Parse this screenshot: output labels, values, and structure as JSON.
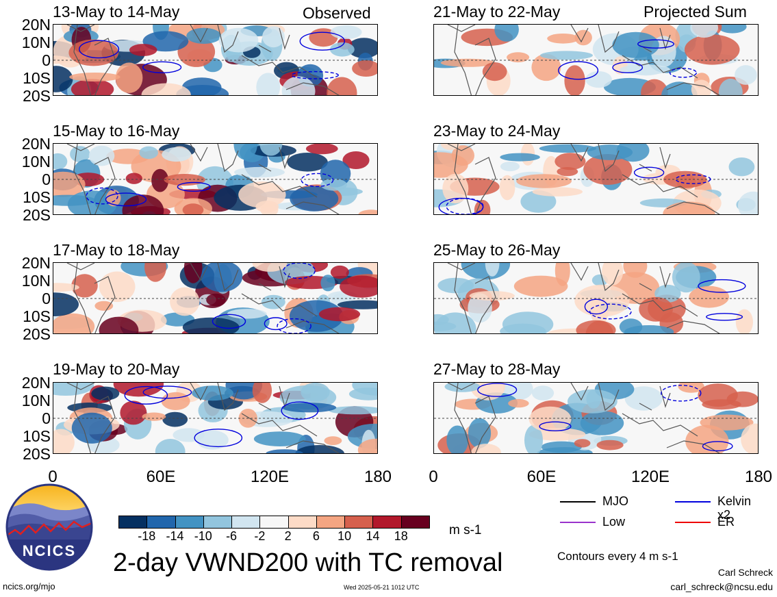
{
  "labels": {
    "observed": "Observed",
    "projected": "Projected Sum"
  },
  "panels_left": [
    {
      "title": "13-May to 14-May"
    },
    {
      "title": "15-May to 16-May"
    },
    {
      "title": "17-May to 18-May"
    },
    {
      "title": "19-May to 20-May"
    }
  ],
  "panels_right": [
    {
      "title": "21-May to 22-May"
    },
    {
      "title": "23-May to 24-May"
    },
    {
      "title": "25-May to 26-May"
    },
    {
      "title": "27-May to 28-May"
    }
  ],
  "lat_ticks": [
    "20N",
    "10N",
    "0",
    "10S",
    "20S"
  ],
  "lon_ticks": [
    "0",
    "60E",
    "120E",
    "180"
  ],
  "colorbar": {
    "colors": [
      "#053061",
      "#2166ac",
      "#4393c3",
      "#92c5de",
      "#d1e5f0",
      "#f7f7f7",
      "#fddbc7",
      "#f4a582",
      "#d6604d",
      "#b2182b",
      "#67001f"
    ],
    "labels": [
      "-18",
      "-14",
      "-10",
      "-6",
      "-2",
      "2",
      "6",
      "10",
      "14",
      "18"
    ],
    "units": "m s-1"
  },
  "legend": {
    "items": [
      {
        "label": "MJO",
        "color": "#000000"
      },
      {
        "label": "Kelvin x2",
        "color": "#0000dd"
      },
      {
        "label": "Low",
        "color": "#9933cc"
      },
      {
        "label": "ER",
        "color": "#ee0000"
      }
    ],
    "contour_note": "Contours every 4 m s-1"
  },
  "logo": {
    "text": "NCICS"
  },
  "main_title": "2-day VWND200 with TC removal",
  "footer": {
    "left": "ncics.org/mjo",
    "center": "Wed 2025-05-21 1012 UTC",
    "author": "Carl Schreck",
    "email": "carl_schreck@ncsu.edu"
  }
}
